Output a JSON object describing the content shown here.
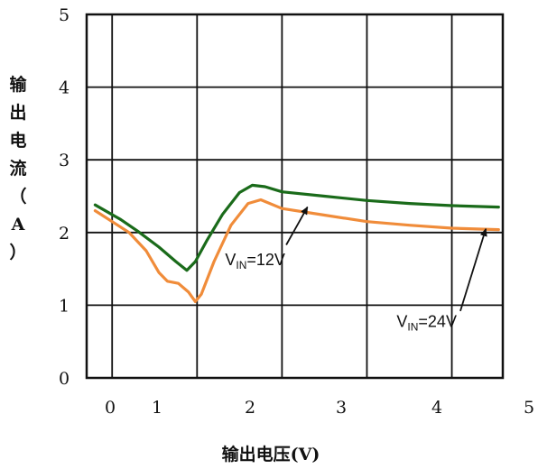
{
  "chart_data": {
    "type": "line",
    "title": "",
    "xlabel": "输出电压(V)",
    "ylabel": "输出电流（A）",
    "xlim": [
      -0.3,
      4.6
    ],
    "ylim": [
      0,
      5
    ],
    "x_ticks": [
      0,
      1,
      2,
      3,
      4,
      5
    ],
    "y_ticks": [
      0,
      1,
      2,
      3,
      4,
      5
    ],
    "grid": true,
    "series": [
      {
        "color": "#1a6b1a",
        "points": [
          [
            -0.2,
            2.38
          ],
          [
            0.1,
            2.18
          ],
          [
            0.3,
            2.02
          ],
          [
            0.55,
            1.8
          ],
          [
            0.75,
            1.6
          ],
          [
            0.88,
            1.48
          ],
          [
            0.98,
            1.6
          ],
          [
            1.12,
            1.9
          ],
          [
            1.3,
            2.25
          ],
          [
            1.5,
            2.55
          ],
          [
            1.65,
            2.65
          ],
          [
            1.8,
            2.63
          ],
          [
            2.0,
            2.56
          ],
          [
            2.5,
            2.5
          ],
          [
            3.0,
            2.44
          ],
          [
            3.5,
            2.4
          ],
          [
            4.0,
            2.37
          ],
          [
            4.55,
            2.35
          ]
        ]
      },
      {
        "color": "#f08c3a",
        "points": [
          [
            -0.2,
            2.3
          ],
          [
            0.0,
            2.15
          ],
          [
            0.2,
            2.0
          ],
          [
            0.4,
            1.75
          ],
          [
            0.55,
            1.45
          ],
          [
            0.65,
            1.33
          ],
          [
            0.78,
            1.3
          ],
          [
            0.9,
            1.18
          ],
          [
            0.98,
            1.05
          ],
          [
            1.05,
            1.15
          ],
          [
            1.2,
            1.6
          ],
          [
            1.4,
            2.1
          ],
          [
            1.6,
            2.4
          ],
          [
            1.75,
            2.45
          ],
          [
            2.0,
            2.33
          ],
          [
            2.5,
            2.24
          ],
          [
            3.0,
            2.15
          ],
          [
            3.5,
            2.1
          ],
          [
            4.0,
            2.06
          ],
          [
            4.55,
            2.04
          ]
        ]
      }
    ],
    "annotations": [
      {
        "prefix": "V",
        "sub": "IN",
        "suffix": "=12V",
        "text_at": [
          1.33,
          1.55
        ],
        "arrow_from": [
          2.05,
          1.83
        ],
        "arrow_to": [
          2.3,
          2.35
        ]
      },
      {
        "prefix": "V",
        "sub": "IN",
        "suffix": "=24V",
        "text_at": [
          3.35,
          0.7
        ],
        "arrow_from": [
          4.1,
          0.92
        ],
        "arrow_to": [
          4.4,
          2.05
        ]
      }
    ]
  }
}
